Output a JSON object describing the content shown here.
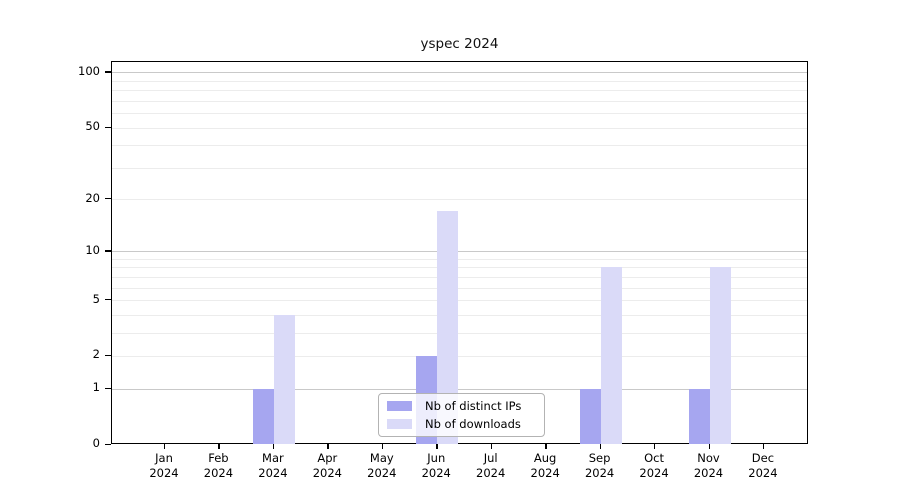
{
  "title": "yspec 2024",
  "legend": {
    "items": [
      {
        "label": "Nb of distinct IPs",
        "color": "#a6a6f0"
      },
      {
        "label": "Nb of downloads",
        "color": "#dadaf8"
      }
    ]
  },
  "chart_data": {
    "type": "bar",
    "title": "yspec 2024",
    "scale": "log1p",
    "categories": [
      {
        "month": "Jan",
        "year": "2024"
      },
      {
        "month": "Feb",
        "year": "2024"
      },
      {
        "month": "Mar",
        "year": "2024"
      },
      {
        "month": "Apr",
        "year": "2024"
      },
      {
        "month": "May",
        "year": "2024"
      },
      {
        "month": "Jun",
        "year": "2024"
      },
      {
        "month": "Jul",
        "year": "2024"
      },
      {
        "month": "Aug",
        "year": "2024"
      },
      {
        "month": "Sep",
        "year": "2024"
      },
      {
        "month": "Oct",
        "year": "2024"
      },
      {
        "month": "Nov",
        "year": "2024"
      },
      {
        "month": "Dec",
        "year": "2024"
      }
    ],
    "series": [
      {
        "name": "Nb of distinct IPs",
        "color": "#a6a6f0",
        "values": [
          0,
          0,
          1,
          0,
          0,
          2,
          0,
          0,
          1,
          0,
          1,
          0
        ]
      },
      {
        "name": "Nb of downloads",
        "color": "#dadaf8",
        "values": [
          0,
          0,
          4,
          0,
          0,
          17,
          0,
          0,
          8,
          0,
          8,
          0
        ]
      }
    ],
    "y_ticks": [
      0,
      1,
      2,
      5,
      10,
      20,
      50,
      100
    ],
    "y_minor_grid": [
      2,
      3,
      4,
      5,
      6,
      7,
      8,
      9,
      20,
      30,
      40,
      50,
      60,
      70,
      80,
      90
    ],
    "y_major_grid": [
      1,
      10,
      100
    ],
    "ylim": [
      0,
      113
    ],
    "xlabel": "",
    "ylabel": "",
    "grid": true,
    "legend_position": "bottom-center"
  }
}
